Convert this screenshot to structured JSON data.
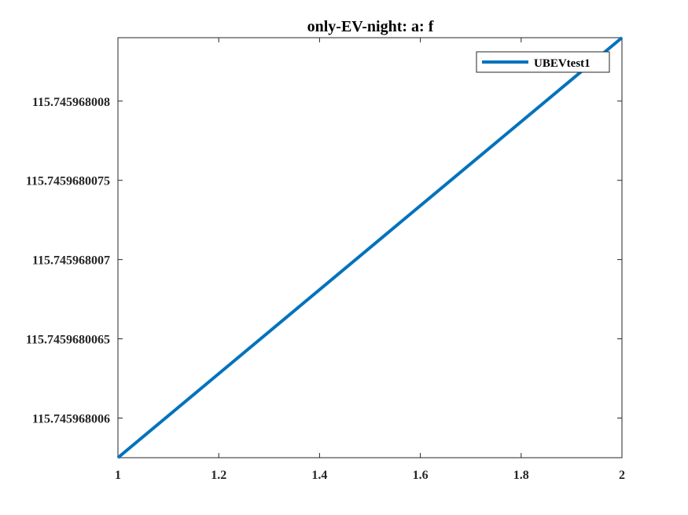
{
  "chart_data": {
    "type": "line",
    "title": "only-EV-night: a: f",
    "xlabel": "",
    "ylabel": "",
    "xlim": [
      1,
      2
    ],
    "ylim": [
      115.74596800575,
      115.7459680084
    ],
    "x_ticks": [
      {
        "value": 1,
        "label": "1"
      },
      {
        "value": 1.2,
        "label": "1.2"
      },
      {
        "value": 1.4,
        "label": "1.4"
      },
      {
        "value": 1.6,
        "label": "1.6"
      },
      {
        "value": 1.8,
        "label": "1.8"
      },
      {
        "value": 2,
        "label": "2"
      }
    ],
    "y_ticks": [
      {
        "value": 115.745968006,
        "label": "115.745968006"
      },
      {
        "value": 115.7459680065,
        "label": "115.7459680065"
      },
      {
        "value": 115.745968007,
        "label": "115.745968007"
      },
      {
        "value": 115.7459680075,
        "label": "115.7459680075"
      },
      {
        "value": 115.745968008,
        "label": "115.745968008"
      }
    ],
    "grid": false,
    "legend": "top-right",
    "series": [
      {
        "name": "UBEVtest1",
        "color": "#0072BD",
        "x": [
          1,
          2
        ],
        "y": [
          115.74596800575,
          115.7459680084
        ]
      }
    ]
  }
}
